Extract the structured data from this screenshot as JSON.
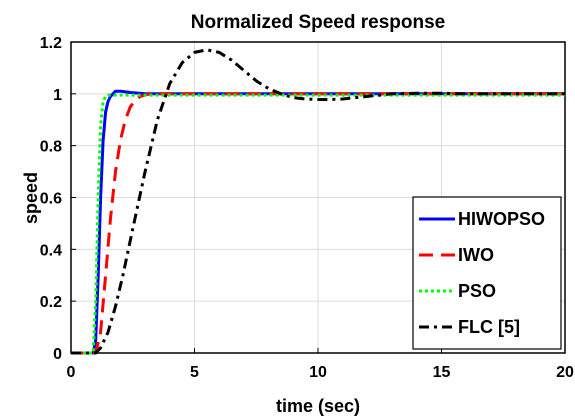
{
  "chart_data": {
    "type": "line",
    "title": "Normalized Speed response",
    "xlabel": "time (sec)",
    "ylabel": "speed",
    "xlim": [
      0,
      20
    ],
    "ylim": [
      0,
      1.2
    ],
    "x_ticks": [
      "0",
      "5",
      "10",
      "15",
      "20"
    ],
    "y_ticks": [
      "0",
      "0.2",
      "0.4",
      "0.6",
      "0.8",
      "1",
      "1.2"
    ],
    "grid": true,
    "legend_position": "bottom-right",
    "series": [
      {
        "name": "HIWOPSO",
        "color": "#0000ff",
        "dash": "solid",
        "x": [
          0,
          0.9,
          1.0,
          1.1,
          1.2,
          1.3,
          1.4,
          1.5,
          1.6,
          1.7,
          1.8,
          1.9,
          2.0,
          2.4,
          3,
          4,
          5,
          10,
          15,
          20
        ],
        "y": [
          0,
          0,
          0.05,
          0.3,
          0.6,
          0.82,
          0.93,
          0.97,
          0.99,
          1.0,
          1.01,
          1.01,
          1.01,
          1.005,
          1.0,
          1.0,
          1.0,
          1.0,
          1.0,
          1.0
        ]
      },
      {
        "name": "IWO",
        "color": "#ff0000",
        "dash": "dashed",
        "x": [
          0,
          1.0,
          1.2,
          1.4,
          1.6,
          1.8,
          2.0,
          2.2,
          2.4,
          2.6,
          2.8,
          3.0,
          3.2,
          3.5,
          4,
          5,
          10,
          15,
          20
        ],
        "y": [
          0,
          0,
          0.08,
          0.3,
          0.52,
          0.7,
          0.82,
          0.9,
          0.95,
          0.975,
          0.99,
          0.995,
          1.0,
          1.0,
          1.0,
          1.0,
          1.0,
          1.0,
          1.0
        ]
      },
      {
        "name": "PSO",
        "color": "#00ff00",
        "dash": "dotted",
        "x": [
          0,
          0.9,
          1.0,
          1.1,
          1.2,
          1.3,
          1.4,
          1.5,
          2,
          5,
          10,
          15,
          20
        ],
        "y": [
          0,
          0,
          0.2,
          0.6,
          0.88,
          0.97,
          0.99,
          0.995,
          0.995,
          0.995,
          0.995,
          0.995,
          0.995
        ]
      },
      {
        "name": "FLC [5]",
        "color": "#000000",
        "dash": "dashdot",
        "x": [
          0,
          1.0,
          1.2,
          1.5,
          1.8,
          2.1,
          2.5,
          3.0,
          3.5,
          4.0,
          4.5,
          5.0,
          5.5,
          6.0,
          6.5,
          7.0,
          7.5,
          8.0,
          8.5,
          9.0,
          9.5,
          10.0,
          10.5,
          11.0,
          11.5,
          12.0,
          12.5,
          13.0,
          14.0,
          15.0,
          16.0,
          18.0,
          20.0
        ],
        "y": [
          0,
          0,
          0.02,
          0.08,
          0.18,
          0.3,
          0.48,
          0.7,
          0.9,
          1.04,
          1.12,
          1.16,
          1.17,
          1.16,
          1.13,
          1.09,
          1.05,
          1.02,
          1.0,
          0.985,
          0.98,
          0.978,
          0.978,
          0.98,
          0.985,
          0.99,
          0.995,
          1.0,
          1.002,
          1.002,
          1.0,
          1.0,
          1.0
        ]
      }
    ]
  }
}
